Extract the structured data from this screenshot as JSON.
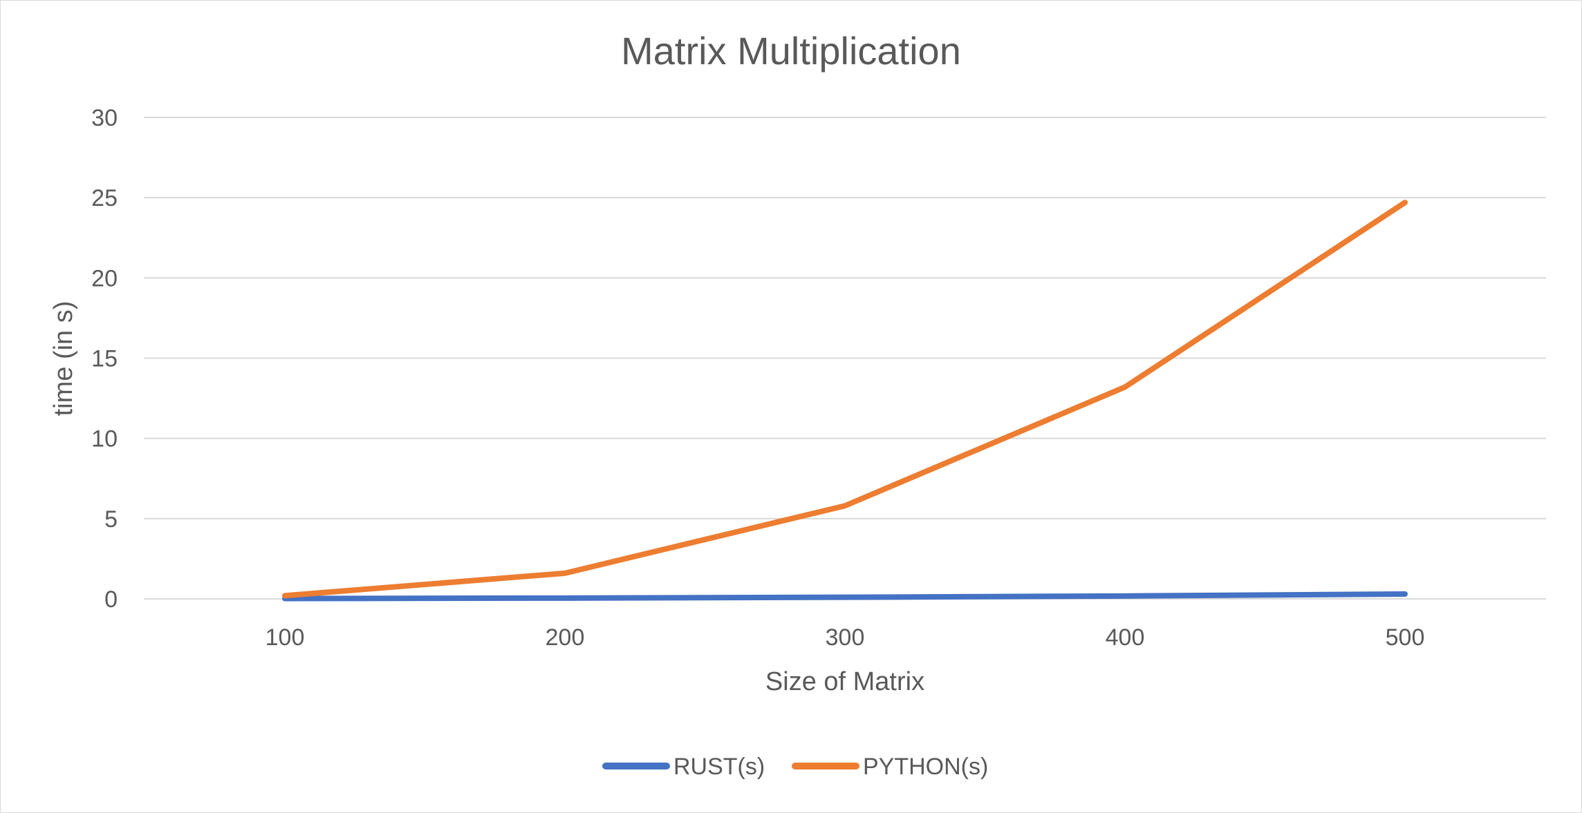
{
  "chart_data": {
    "type": "line",
    "title": "Matrix Multiplication",
    "xlabel": "Size of Matrix",
    "ylabel": "time (in s)",
    "categories": [
      "100",
      "200",
      "300",
      "400",
      "500"
    ],
    "ylim": [
      0,
      30
    ],
    "yticks": [
      0,
      5,
      10,
      15,
      20,
      25,
      30
    ],
    "grid": true,
    "legend_position": "bottom",
    "series": [
      {
        "name": "RUST(s)",
        "color": "#4472C4",
        "values": [
          0.02,
          0.05,
          0.1,
          0.18,
          0.3
        ]
      },
      {
        "name": "PYTHON(s)",
        "color": "#ED7D31",
        "values": [
          0.2,
          1.6,
          5.8,
          13.2,
          24.7
        ]
      }
    ]
  }
}
